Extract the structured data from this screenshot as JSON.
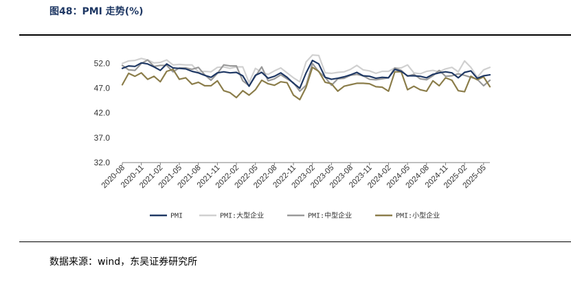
{
  "figure": {
    "title": "图48：PMI 走势(%)",
    "source": "数据来源：wind，东吴证券研究所"
  },
  "chart_data": {
    "type": "line",
    "x": [
      "2020-08",
      "2020-09",
      "2020-10",
      "2020-11",
      "2020-12",
      "2021-01",
      "2021-02",
      "2021-03",
      "2021-04",
      "2021-05",
      "2021-06",
      "2021-07",
      "2021-08",
      "2021-09",
      "2021-10",
      "2021-11",
      "2021-12",
      "2022-01",
      "2022-02",
      "2022-03",
      "2022-04",
      "2022-05",
      "2022-06",
      "2022-07",
      "2022-08",
      "2022-09",
      "2022-10",
      "2022-11",
      "2022-12",
      "2023-01",
      "2023-02",
      "2023-03",
      "2023-04",
      "2023-05",
      "2023-06",
      "2023-07",
      "2023-08",
      "2023-09",
      "2023-10",
      "2023-11",
      "2023-12",
      "2024-01",
      "2024-02",
      "2024-03",
      "2024-04",
      "2024-05",
      "2024-06",
      "2024-07",
      "2024-08",
      "2024-09",
      "2024-10",
      "2024-11",
      "2024-12",
      "2025-01",
      "2025-02",
      "2025-03",
      "2025-04",
      "2025-05",
      "2025-06"
    ],
    "xticks": [
      "2020-08",
      "2020-11",
      "2021-02",
      "2021-05",
      "2021-08",
      "2021-11",
      "2022-02",
      "2022-05",
      "2022-08",
      "2022-11",
      "2023-02",
      "2023-05",
      "2023-08",
      "2023-11",
      "2024-02",
      "2024-05",
      "2024-08",
      "2024-11",
      "2025-02",
      "2025-05"
    ],
    "yticks": [
      "32.0",
      "37.0",
      "42.0",
      "47.0",
      "52.0"
    ],
    "ylim": [
      32,
      54
    ],
    "legend_position": "bottom",
    "series": [
      {
        "name": "PMI",
        "color": "#1f3864",
        "width": 2.2,
        "values": [
          51.0,
          51.5,
          51.4,
          52.1,
          51.9,
          51.3,
          50.6,
          51.9,
          51.1,
          51.0,
          50.9,
          50.4,
          50.1,
          49.6,
          49.2,
          50.1,
          50.3,
          50.1,
          50.2,
          49.5,
          47.4,
          49.6,
          50.2,
          49.0,
          49.4,
          50.1,
          49.2,
          48.0,
          47.0,
          50.1,
          52.6,
          51.9,
          49.2,
          48.8,
          49.0,
          49.3,
          49.7,
          50.2,
          49.5,
          49.4,
          49.0,
          49.2,
          49.1,
          50.8,
          50.4,
          49.5,
          49.5,
          49.4,
          49.1,
          49.8,
          50.1,
          50.3,
          50.1,
          49.1,
          50.2,
          50.5,
          49.0,
          49.5,
          49.7
        ]
      },
      {
        "name": "PMI:大型企业",
        "color": "#d0d0d0",
        "width": 2.2,
        "values": [
          52.0,
          52.5,
          52.6,
          53.0,
          52.7,
          52.1,
          52.2,
          52.7,
          51.7,
          51.8,
          51.7,
          51.7,
          50.3,
          50.4,
          50.3,
          51.2,
          51.3,
          51.0,
          51.3,
          51.3,
          48.1,
          51.0,
          50.2,
          49.8,
          50.5,
          51.1,
          50.1,
          49.1,
          48.3,
          52.3,
          53.7,
          53.6,
          50.1,
          50.0,
          50.2,
          50.3,
          50.8,
          51.6,
          50.7,
          50.5,
          50.0,
          50.4,
          50.4,
          51.1,
          51.1,
          51.7,
          50.1,
          49.9,
          50.4,
          50.6,
          50.3,
          50.9,
          51.2,
          50.3,
          52.5,
          51.2,
          49.2,
          50.7,
          51.2
        ]
      },
      {
        "name": "PMI:中型企业",
        "color": "#999999",
        "width": 2.2,
        "values": [
          51.6,
          50.7,
          50.6,
          52.0,
          52.7,
          51.4,
          51.6,
          51.6,
          50.3,
          51.1,
          51.1,
          50.8,
          51.2,
          49.7,
          48.6,
          50.0,
          51.7,
          51.5,
          51.5,
          48.5,
          47.5,
          49.4,
          51.3,
          48.5,
          48.9,
          49.7,
          48.9,
          48.1,
          46.4,
          47.6,
          52.0,
          50.3,
          49.2,
          47.6,
          48.9,
          49.0,
          49.6,
          49.8,
          49.5,
          48.8,
          48.7,
          48.9,
          49.1,
          51.1,
          50.6,
          49.4,
          49.8,
          48.9,
          48.7,
          49.5,
          50.6,
          49.4,
          49.5,
          49.9,
          49.6,
          49.2,
          48.8,
          47.5,
          48.6
        ]
      },
      {
        "name": "PMI:小型企业",
        "color": "#8b7d4a",
        "width": 2.2,
        "values": [
          47.7,
          50.0,
          49.4,
          50.1,
          48.8,
          49.4,
          48.3,
          50.4,
          50.8,
          48.8,
          49.1,
          47.8,
          48.2,
          47.5,
          47.5,
          48.5,
          46.5,
          46.1,
          45.1,
          46.5,
          45.6,
          46.7,
          48.6,
          47.9,
          47.6,
          48.3,
          48.1,
          45.6,
          44.7,
          47.2,
          51.2,
          50.4,
          48.2,
          47.9,
          46.4,
          47.4,
          47.7,
          48.0,
          48.0,
          47.9,
          47.3,
          47.2,
          46.4,
          50.3,
          50.3,
          46.7,
          47.4,
          46.7,
          46.4,
          48.5,
          47.5,
          49.1,
          48.6,
          46.5,
          46.3,
          49.4,
          48.7,
          49.3,
          47.3
        ]
      }
    ]
  }
}
